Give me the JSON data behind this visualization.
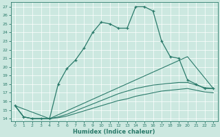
{
  "xlabel": "Humidex (Indice chaleur)",
  "bg_color": "#cce8e0",
  "grid_color": "#ffffff",
  "line_color": "#2a7a6a",
  "xlim": [
    -0.5,
    23.5
  ],
  "ylim": [
    13.7,
    27.5
  ],
  "xticks": [
    0,
    1,
    2,
    3,
    4,
    5,
    6,
    7,
    8,
    9,
    10,
    11,
    12,
    13,
    14,
    15,
    16,
    17,
    18,
    19,
    20,
    21,
    22,
    23
  ],
  "yticks": [
    14,
    15,
    16,
    17,
    18,
    19,
    20,
    21,
    22,
    23,
    24,
    25,
    26,
    27
  ],
  "curve_main_x": [
    0,
    1,
    2,
    3,
    4,
    5,
    6,
    7,
    8,
    9,
    10,
    11,
    12,
    13,
    14,
    15,
    16,
    17,
    18,
    19,
    20,
    21,
    22,
    23
  ],
  "curve_main_y": [
    15.5,
    14.2,
    14.0,
    14.0,
    14.0,
    18.0,
    19.8,
    20.8,
    22.2,
    24.0,
    25.2,
    25.0,
    24.5,
    24.5,
    27.0,
    27.0,
    26.5,
    23.0,
    21.2,
    21.0,
    18.5,
    18.0,
    17.5,
    17.5
  ],
  "curve2_x": [
    0,
    1,
    2,
    3,
    4,
    5,
    6,
    7,
    8,
    9,
    10,
    11,
    12,
    13,
    14,
    15,
    16,
    17,
    18,
    19,
    20,
    21,
    22,
    23
  ],
  "curve2_y": [
    15.5,
    14.2,
    14.0,
    14.0,
    14.0,
    14.2,
    14.5,
    14.9,
    15.3,
    15.7,
    16.1,
    16.5,
    16.9,
    17.2,
    17.5,
    17.7,
    17.9,
    18.0,
    18.1,
    18.2,
    18.2,
    17.9,
    17.6,
    17.5
  ],
  "curve3_x": [
    0,
    1,
    2,
    3,
    4,
    5,
    6,
    7,
    8,
    9,
    10,
    11,
    12,
    13,
    14,
    15,
    16,
    17,
    18,
    19,
    20,
    21,
    22,
    23
  ],
  "curve3_y": [
    15.5,
    14.2,
    14.0,
    14.0,
    14.0,
    14.1,
    14.3,
    14.6,
    14.9,
    15.2,
    15.5,
    15.8,
    16.1,
    16.3,
    16.6,
    16.8,
    17.0,
    17.2,
    17.3,
    17.4,
    17.5,
    17.3,
    17.1,
    17.0
  ],
  "curve4_x": [
    0,
    4,
    20,
    23
  ],
  "curve4_y": [
    15.5,
    14.0,
    21.2,
    17.5
  ]
}
